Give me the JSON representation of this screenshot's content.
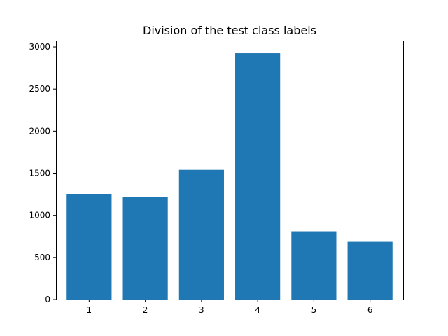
{
  "chart_data": {
    "type": "bar",
    "title": "Division of the test class labels",
    "xlabel": "",
    "ylabel": "",
    "categories": [
      "1",
      "2",
      "3",
      "4",
      "5",
      "6"
    ],
    "values": [
      1255,
      1215,
      1540,
      2925,
      810,
      685
    ],
    "ylim": [
      0,
      3075
    ],
    "yticks": [
      0,
      500,
      1000,
      1500,
      2000,
      2500,
      3000
    ],
    "bar_color": "#1f77b4",
    "grid": false,
    "legend": "none"
  }
}
